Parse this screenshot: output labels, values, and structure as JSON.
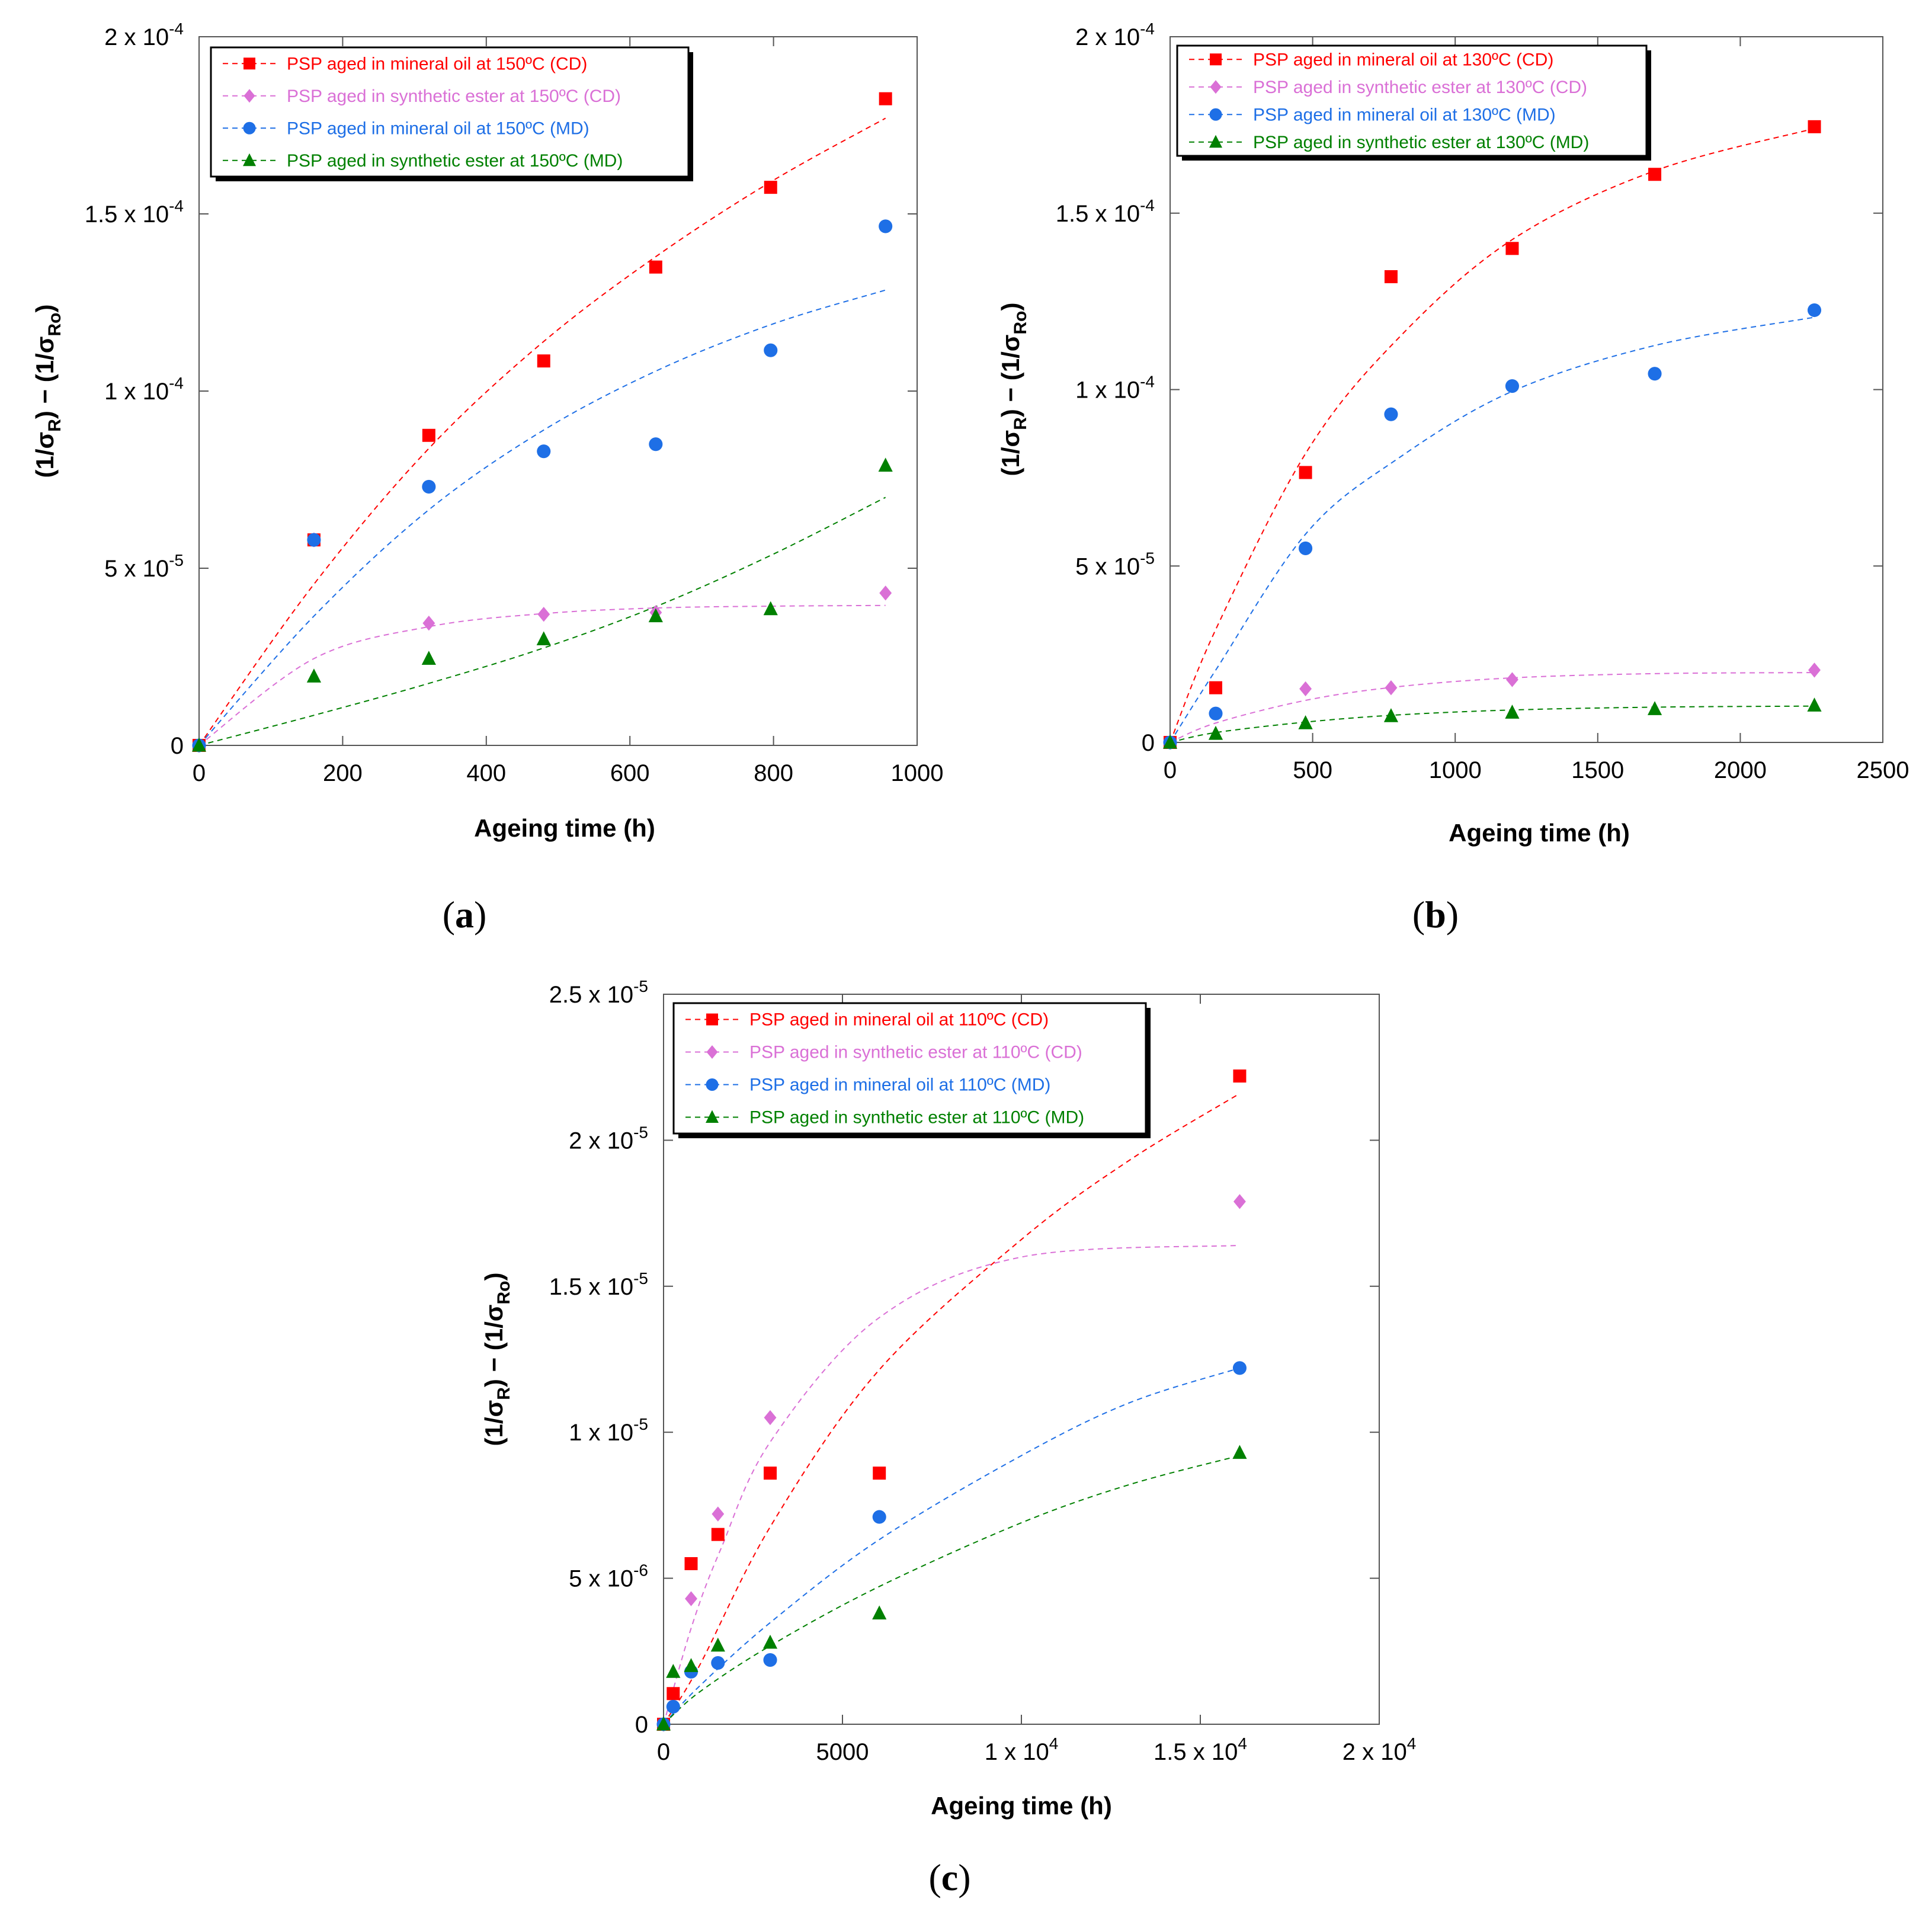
{
  "chart_data": [
    {
      "panel_label": "(a)",
      "type": "scatter",
      "xlabel": "Ageing time (h)",
      "ylabel": "(1/σR) − (1/σRo)",
      "xlim": [
        0,
        1000
      ],
      "ylim": [
        0,
        0.0002
      ],
      "x_ticks": [
        {
          "v": 0,
          "t": "0"
        },
        {
          "v": 200,
          "t": "200"
        },
        {
          "v": 400,
          "t": "400"
        },
        {
          "v": 600,
          "t": "600"
        },
        {
          "v": 800,
          "t": "800"
        },
        {
          "v": 1000,
          "t": "1000"
        }
      ],
      "y_ticks": [
        {
          "v": 0,
          "m": "0",
          "e": ""
        },
        {
          "v": 5e-05,
          "m": "5 x 10",
          "e": "-5"
        },
        {
          "v": 0.0001,
          "m": "1 x 10",
          "e": "-4"
        },
        {
          "v": 0.00015,
          "m": "1.5 x 10",
          "e": "-4"
        },
        {
          "v": 0.0002,
          "m": "2 x 10",
          "e": "-4"
        }
      ],
      "legend_position": "top-left",
      "series": [
        {
          "name": "PSP aged in mineral oil at 150ºC (CD)",
          "color": "#ff0000",
          "marker": "square",
          "x": [
            0,
            160,
            320,
            480,
            636,
            796,
            956
          ],
          "y": [
            0,
            5.8e-05,
            8.75e-05,
            0.0001085,
            0.000135,
            0.0001575,
            0.0001825
          ],
          "fit_x": [
            0,
            160,
            320,
            480,
            640,
            800,
            956
          ],
          "fit_y": [
            0,
            4.55e-05,
            8.38e-05,
            0.000114,
            0.0001385,
            0.0001595,
            0.000177
          ]
        },
        {
          "name": "PSP aged in synthetic ester at 150ºC (CD)",
          "color": "#da70d6",
          "marker": "diamond",
          "x": [
            0,
            160,
            320,
            480,
            636,
            956
          ],
          "y": [
            0,
            5.8e-05,
            3.45e-05,
            3.7e-05,
            3.75e-05,
            4.3e-05
          ],
          "fit_x": [
            0,
            160,
            320,
            480,
            640,
            800,
            956
          ],
          "fit_y": [
            0,
            2.45e-05,
            3.35e-05,
            3.72e-05,
            3.88e-05,
            3.93e-05,
            3.95e-05
          ]
        },
        {
          "name": "PSP aged in mineral oil at 150ºC (MD)",
          "color": "#1e6fe6",
          "marker": "circle",
          "x": [
            0,
            160,
            320,
            480,
            636,
            796,
            956
          ],
          "y": [
            0,
            5.8e-05,
            7.3e-05,
            8.3e-05,
            8.5e-05,
            0.0001115,
            0.0001465
          ],
          "fit_x": [
            0,
            160,
            320,
            480,
            640,
            800,
            956
          ],
          "fit_y": [
            0,
            3.65e-05,
            6.65e-05,
            8.9e-05,
            0.000106,
            0.000119,
            0.0001285
          ]
        },
        {
          "name": "PSP aged in synthetic ester at 150ºC (MD)",
          "color": "#008000",
          "marker": "triangle",
          "x": [
            0,
            160,
            320,
            480,
            636,
            796,
            956
          ],
          "y": [
            0,
            1.95e-05,
            2.45e-05,
            3e-05,
            3.65e-05,
            3.85e-05,
            7.9e-05
          ],
          "fit_x": [
            0,
            160,
            320,
            480,
            640,
            800,
            956
          ],
          "fit_y": [
            0,
            8.5e-06,
            1.75e-05,
            2.75e-05,
            3.95e-05,
            5.4e-05,
            7e-05
          ]
        }
      ]
    },
    {
      "panel_label": "(b)",
      "type": "scatter",
      "xlabel": "Ageing time (h)",
      "ylabel": "(1/σR) − (1/σRo)",
      "xlim": [
        0,
        2500
      ],
      "ylim": [
        0,
        0.0002
      ],
      "x_ticks": [
        {
          "v": 0,
          "t": "0"
        },
        {
          "v": 500,
          "t": "500"
        },
        {
          "v": 1000,
          "t": "1000"
        },
        {
          "v": 1500,
          "t": "1500"
        },
        {
          "v": 2000,
          "t": "2000"
        },
        {
          "v": 2500,
          "t": "2500"
        }
      ],
      "y_ticks": [
        {
          "v": 0,
          "m": "0",
          "e": ""
        },
        {
          "v": 5e-05,
          "m": "5 x 10",
          "e": "-5"
        },
        {
          "v": 0.0001,
          "m": "1 x 10",
          "e": "-4"
        },
        {
          "v": 0.00015,
          "m": "1.5 x 10",
          "e": "-4"
        },
        {
          "v": 0.0002,
          "m": "2 x 10",
          "e": "-4"
        }
      ],
      "legend_position": "top-left",
      "series": [
        {
          "name": "PSP aged in mineral oil at 130ºC (CD)",
          "color": "#ff0000",
          "marker": "square",
          "x": [
            0,
            160,
            475,
            775,
            1200,
            1700,
            2260
          ],
          "y": [
            0,
            1.55e-05,
            7.65e-05,
            0.000132,
            0.00014,
            0.000161,
            0.0001745
          ],
          "fit_x": [
            0,
            160,
            480,
            800,
            1200,
            1700,
            2260
          ],
          "fit_y": [
            0,
            3.2e-05,
            8.25e-05,
            0.0001145,
            0.0001425,
            0.000162,
            0.000174
          ]
        },
        {
          "name": "PSP aged in synthetic ester at 130ºC (CD)",
          "color": "#da70d6",
          "marker": "diamond",
          "x": [
            0,
            475,
            775,
            1200,
            2260
          ],
          "y": [
            0,
            1.52e-05,
            1.55e-05,
            1.78e-05,
            2.05e-05
          ],
          "fit_x": [
            0,
            160,
            480,
            800,
            1200,
            1700,
            2260
          ],
          "fit_y": [
            0,
            5.5e-06,
            1.2e-05,
            1.58e-05,
            1.83e-05,
            1.95e-05,
            1.98e-05
          ]
        },
        {
          "name": "PSP aged in mineral oil at 130ºC (MD)",
          "color": "#1e6fe6",
          "marker": "circle",
          "x": [
            0,
            160,
            475,
            775,
            1200,
            1700,
            2260
          ],
          "y": [
            0,
            8.2e-06,
            5.5e-05,
            9.3e-05,
            0.000101,
            0.0001045,
            0.0001225
          ],
          "fit_x": [
            0,
            160,
            480,
            800,
            1200,
            1700,
            2260
          ],
          "fit_y": [
            0,
            2.05e-05,
            5.95e-05,
            8.05e-05,
            9.95e-05,
            0.0001125,
            0.0001205
          ]
        },
        {
          "name": "PSP aged in synthetic ester at 130ºC (MD)",
          "color": "#008000",
          "marker": "triangle",
          "x": [
            0,
            160,
            475,
            775,
            1200,
            1700,
            2260
          ],
          "y": [
            0,
            2.5e-06,
            5.5e-06,
            7.5e-06,
            8.5e-06,
            9.5e-06,
            1.05e-05
          ],
          "fit_x": [
            0,
            160,
            480,
            800,
            1200,
            1700,
            2260
          ],
          "fit_y": [
            0,
            2.8e-06,
            5.8e-06,
            7.8e-06,
            9.2e-06,
            1e-05,
            1.03e-05
          ]
        }
      ]
    },
    {
      "panel_label": "(c)",
      "type": "scatter",
      "xlabel": "Ageing time (h)",
      "ylabel": "(1/σR) − (1/σRo)",
      "xlim": [
        0,
        20000
      ],
      "ylim": [
        0,
        2.5e-05
      ],
      "x_ticks": [
        {
          "v": 0,
          "m": "0",
          "e": ""
        },
        {
          "v": 5000,
          "m": "5000",
          "e": ""
        },
        {
          "v": 10000,
          "m": "1 x 10",
          "e": "4"
        },
        {
          "v": 15000,
          "m": "1.5 x 10",
          "e": "4"
        },
        {
          "v": 20000,
          "m": "2 x 10",
          "e": "4"
        }
      ],
      "y_ticks": [
        {
          "v": 0,
          "m": "0",
          "e": ""
        },
        {
          "v": 5e-06,
          "m": "5 x 10",
          "e": "-6"
        },
        {
          "v": 1e-05,
          "m": "1 x 10",
          "e": "-5"
        },
        {
          "v": 1.5e-05,
          "m": "1.5 x 10",
          "e": "-5"
        },
        {
          "v": 2e-05,
          "m": "2 x 10",
          "e": "-5"
        },
        {
          "v": 2.5e-05,
          "m": "2.5 x 10",
          "e": "-5"
        }
      ],
      "legend_position": "top-left",
      "series": [
        {
          "name": "PSP aged in mineral oil at 110ºC (CD)",
          "color": "#ff0000",
          "marker": "square",
          "x": [
            0,
            270,
            770,
            1520,
            2980,
            6030,
            16100
          ],
          "y": [
            0,
            1.05e-06,
            5.5e-06,
            6.5e-06,
            8.6e-06,
            8.6e-06,
            2.22e-05
          ],
          "fit_x": [
            0,
            1000,
            3000,
            6000,
            10000,
            13000,
            16100
          ],
          "fit_y": [
            0,
            2e-06,
            6.8e-06,
            1.21e-05,
            1.66e-05,
            1.93e-05,
            2.16e-05
          ]
        },
        {
          "name": "PSP aged in synthetic ester at 110ºC (CD)",
          "color": "#da70d6",
          "marker": "diamond",
          "x": [
            0,
            770,
            1520,
            2980,
            16100
          ],
          "y": [
            0,
            4.3e-06,
            7.2e-06,
            1.05e-05,
            1.79e-05
          ],
          "fit_x": [
            0,
            800,
            1600,
            3000,
            6000,
            10000,
            16100
          ],
          "fit_y": [
            0,
            3.4e-06,
            6e-06,
            9.7e-06,
            1.39e-05,
            1.6e-05,
            1.64e-05
          ]
        },
        {
          "name": "PSP aged in mineral oil at 110ºC (MD)",
          "color": "#1e6fe6",
          "marker": "circle",
          "x": [
            0,
            270,
            770,
            1520,
            2980,
            6030,
            16100
          ],
          "y": [
            0,
            6e-07,
            1.8e-06,
            2.1e-06,
            2.2e-06,
            7.1e-06,
            1.22e-05
          ],
          "fit_x": [
            0,
            1000,
            3000,
            6000,
            10000,
            13000,
            16100
          ],
          "fit_y": [
            0,
            1.3e-06,
            3.5e-06,
            6.3e-06,
            9.2e-06,
            1.1e-05,
            1.22e-05
          ]
        },
        {
          "name": "PSP aged in synthetic ester at 110ºC (MD)",
          "color": "#008000",
          "marker": "triangle",
          "x": [
            0,
            270,
            770,
            1520,
            2980,
            6030,
            16100
          ],
          "y": [
            0,
            1.8e-06,
            2e-06,
            2.7e-06,
            2.8e-06,
            3.8e-06,
            9.3e-06
          ],
          "fit_x": [
            0,
            1000,
            3000,
            6000,
            10000,
            13000,
            16100
          ],
          "fit_y": [
            0,
            1.1e-06,
            2.7e-06,
            4.7e-06,
            6.9e-06,
            8.2e-06,
            9.2e-06
          ]
        }
      ]
    }
  ]
}
